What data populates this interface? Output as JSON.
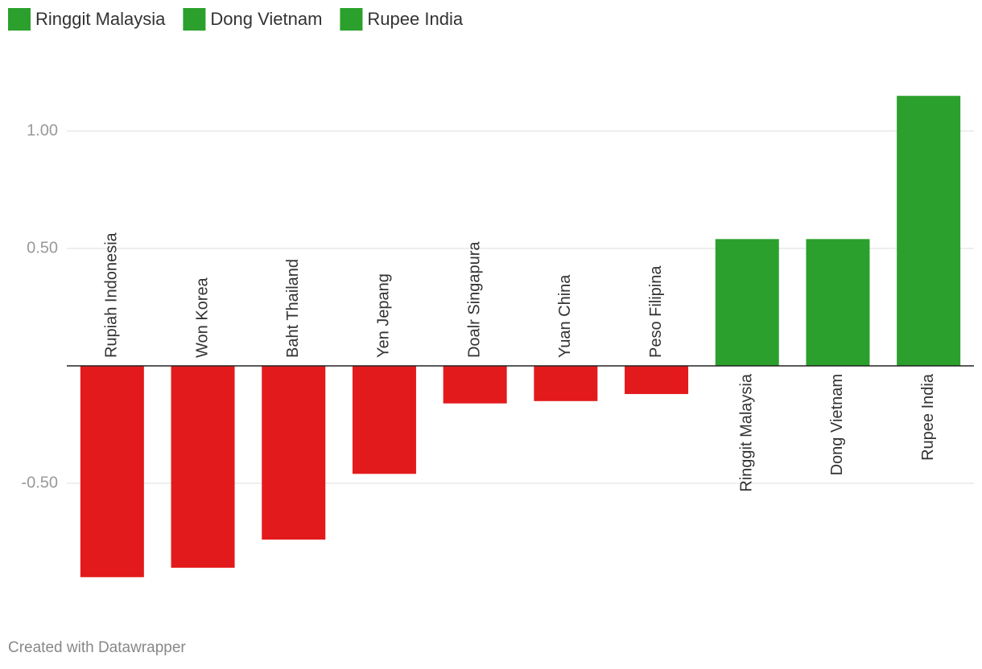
{
  "chart_data": {
    "type": "bar",
    "legend": [
      {
        "name": "Ringgit Malaysia",
        "color": "#2ca02c"
      },
      {
        "name": "Dong Vietnam",
        "color": "#2ca02c"
      },
      {
        "name": "Rupee India",
        "color": "#2ca02c"
      }
    ],
    "categories": [
      "Rupiah Indonesia",
      "Won Korea",
      "Baht Thailand",
      "Yen Jepang",
      "Doalr Singapura",
      "Yuan China",
      "Peso Filipina",
      "Ringgit Malaysia",
      "Dong Vietnam",
      "Rupee India"
    ],
    "values": [
      -0.9,
      -0.86,
      -0.74,
      -0.46,
      -0.16,
      -0.15,
      -0.12,
      0.54,
      0.54,
      1.15
    ],
    "colors": [
      "#e31a1c",
      "#e31a1c",
      "#e31a1c",
      "#e31a1c",
      "#e31a1c",
      "#e31a1c",
      "#e31a1c",
      "#2ca02c",
      "#2ca02c",
      "#2ca02c"
    ],
    "ylim": [
      -1.0,
      1.25
    ],
    "yticks": [
      {
        "value": -0.5,
        "label": "-0.50"
      },
      {
        "value": 0.5,
        "label": "0.50"
      },
      {
        "value": 1,
        "label": "1.00"
      }
    ],
    "grid": true,
    "footer": "Created with Datawrapper"
  }
}
